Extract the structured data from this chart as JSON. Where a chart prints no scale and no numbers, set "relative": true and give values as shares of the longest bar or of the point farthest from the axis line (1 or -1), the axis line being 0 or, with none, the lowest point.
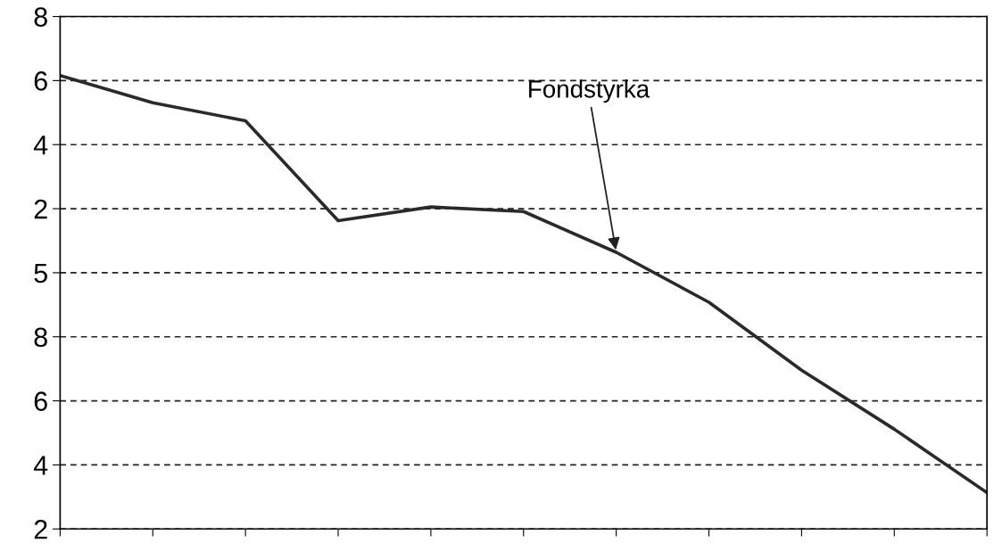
{
  "chart_data": {
    "type": "line",
    "categories": [
      null,
      null,
      null,
      null,
      null,
      null,
      null,
      null,
      null,
      null,
      null
    ],
    "series": [
      {
        "color": "#2a2a2a",
        "values": [
          1.0,
          0.94,
          0.9,
          0.68,
          0.71,
          0.7,
          0.61,
          0.5,
          0.35,
          0.22,
          0.08
        ]
      }
    ],
    "relative": true,
    "grid": "y",
    "line_style": "solid",
    "marker": "none",
    "annotations": [
      "Fondstyrka",
      "2",
      "4",
      "6",
      "8",
      "5",
      "2",
      "4",
      "6",
      "8"
    ]
  }
}
